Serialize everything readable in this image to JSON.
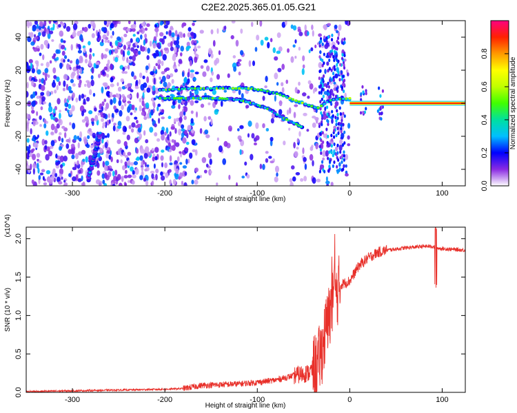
{
  "title": "C2E2.2025.365.01.05.G21",
  "chart_data": [
    {
      "type": "heatmap",
      "xlabel": "Height of straight line (km)",
      "ylabel": "Frequency (Hz)",
      "xlim": [
        -350,
        125
      ],
      "ylim": [
        -50,
        50
      ],
      "xticks": [
        -300,
        -200,
        -100,
        0,
        100
      ],
      "yticks": [
        -40,
        -20,
        0,
        20,
        40
      ],
      "colorbar": {
        "label": "Normalized spectral amplitude",
        "range": [
          0,
          1
        ],
        "ticks": [
          "0.0",
          "0.2",
          "0.4",
          "0.6",
          "0.8"
        ],
        "colors": [
          "#ffffff",
          "#8a2be2",
          "#0000ff",
          "#00bfff",
          "#00e0a0",
          "#40ff00",
          "#c0ff00",
          "#ffff00",
          "#ff9900",
          "#ff2200",
          "#ff0080"
        ]
      },
      "features": [
        {
          "name": "carrier",
          "x_range": [
            0,
            125
          ],
          "frequency": 0,
          "amplitude": 1.0
        },
        {
          "name": "upper trace",
          "points": [
            [
              -205,
              8
            ],
            [
              -170,
              9
            ],
            [
              -140,
              9
            ],
            [
              -110,
              9
            ],
            [
              -95,
              8
            ],
            [
              -80,
              6
            ],
            [
              -65,
              3
            ],
            [
              -50,
              0
            ],
            [
              -35,
              -3
            ],
            [
              -20,
              2
            ],
            [
              0,
              3
            ]
          ],
          "amplitude": 0.45
        },
        {
          "name": "lower trace",
          "points": [
            [
              -205,
              3
            ],
            [
              -170,
              3
            ],
            [
              -140,
              3
            ],
            [
              -120,
              2
            ],
            [
              -105,
              0
            ],
            [
              -90,
              -3
            ],
            [
              -75,
              -8
            ],
            [
              -60,
              -12
            ],
            [
              -50,
              -15
            ]
          ],
          "amplitude": 0.4
        },
        {
          "name": "diagonal streak",
          "points": [
            [
              -283,
              -46
            ],
            [
              -270,
              -18
            ]
          ],
          "amplitude": 0.3
        }
      ]
    },
    {
      "type": "line",
      "xlabel": "Height of straight line (km)",
      "ylabel": "SNR (10 * v/v)",
      "y_multiplier": "(x10^4)",
      "xlim": [
        -350,
        125
      ],
      "ylim": [
        0,
        2.15
      ],
      "xticks": [
        -300,
        -200,
        -100,
        0,
        100
      ],
      "yticks": [
        "0.0",
        "0.5",
        "1.0",
        "1.5",
        "2.0"
      ],
      "series": [
        {
          "color": "#e8302a",
          "x": [
            -350,
            -300,
            -250,
            -200,
            -180,
            -160,
            -140,
            -120,
            -100,
            -80,
            -60,
            -45,
            -35,
            -30,
            -25,
            -20,
            -15,
            -10,
            0,
            10,
            20,
            30,
            40,
            60,
            80,
            90,
            93,
            100,
            125
          ],
          "y": [
            0.01,
            0.02,
            0.03,
            0.04,
            0.05,
            0.09,
            0.1,
            0.11,
            0.13,
            0.16,
            0.22,
            0.25,
            0.35,
            0.55,
            0.85,
            1.1,
            1.25,
            1.4,
            1.45,
            1.65,
            1.75,
            1.82,
            1.85,
            1.88,
            1.9,
            1.9,
            1.88,
            1.87,
            1.85
          ]
        }
      ]
    }
  ]
}
